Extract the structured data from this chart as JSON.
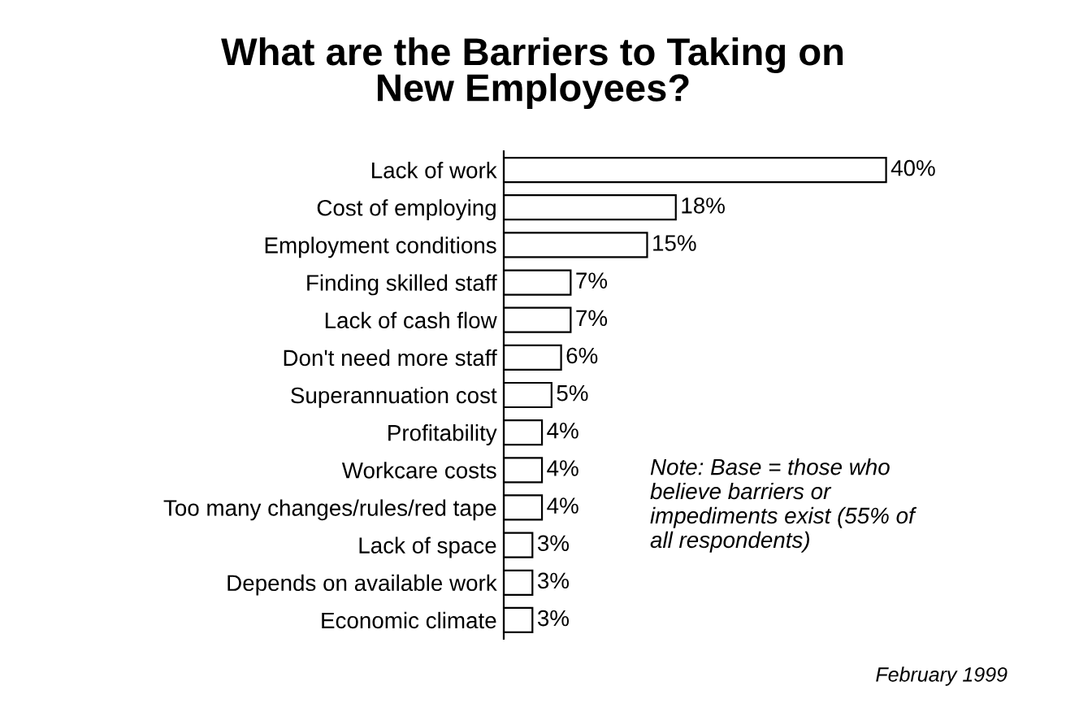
{
  "chart_data": {
    "type": "bar",
    "orientation": "horizontal",
    "title": "What are the Barriers to Taking on New Employees?",
    "categories": [
      "Lack of work",
      "Cost of employing",
      "Employment conditions",
      "Finding skilled staff",
      "Lack of cash flow",
      "Don't need more staff",
      "Superannuation cost",
      "Profitability",
      "Workcare costs",
      "Too many changes/rules/red tape",
      "Lack of space",
      "Depends on available work",
      "Economic climate"
    ],
    "values": [
      40,
      18,
      15,
      7,
      7,
      6,
      5,
      4,
      4,
      4,
      3,
      3,
      3
    ],
    "value_labels": [
      "40%",
      "18%",
      "15%",
      "7%",
      "7%",
      "6%",
      "5%",
      "4%",
      "4%",
      "4%",
      "3%",
      "3%",
      "3%"
    ],
    "color": "#ffffff",
    "annotations": [
      "Note: Base = those who believe barriers or impediments exist (55% of all respondents)",
      "February 1999"
    ]
  }
}
